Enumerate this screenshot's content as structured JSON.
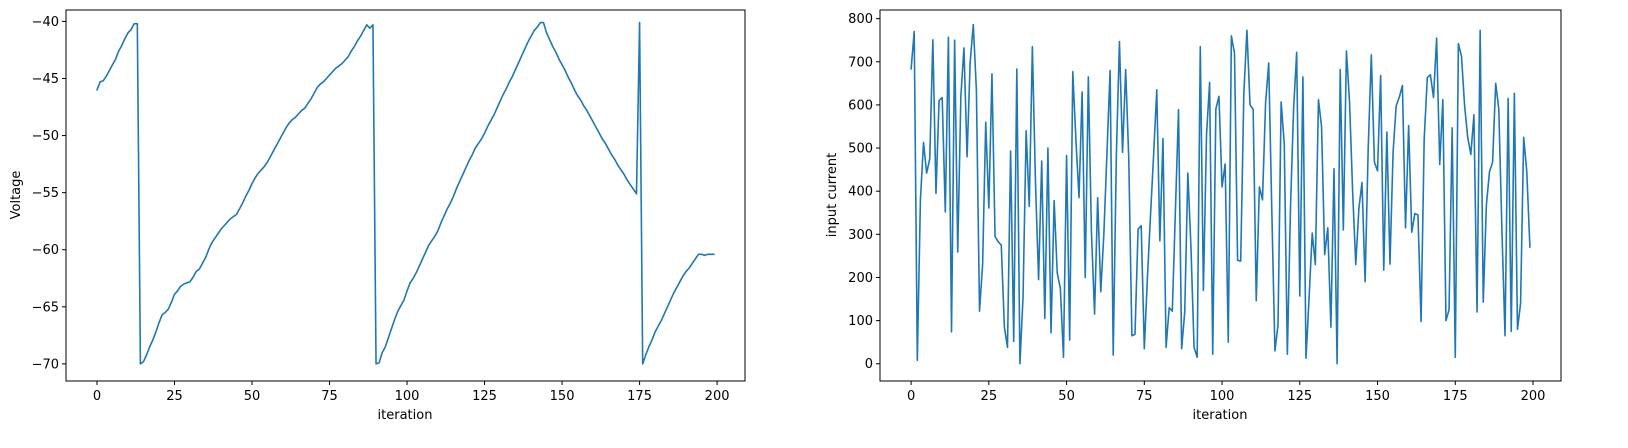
{
  "colors": {
    "series": "#1f77b4",
    "axes": "#000000",
    "background": "#ffffff"
  },
  "chart_data": [
    {
      "type": "line",
      "title": "",
      "xlabel": "iteration",
      "ylabel": "Voltage",
      "xlim": [
        -10,
        209
      ],
      "ylim": [
        -71.5,
        -39.0
      ],
      "xticks": [
        0,
        25,
        50,
        75,
        100,
        125,
        150,
        175,
        200
      ],
      "yticks": [
        -70,
        -65,
        -60,
        -55,
        -50,
        -45,
        -40
      ],
      "grid": false,
      "series": [
        {
          "x": [
            0,
            1,
            2,
            3,
            4,
            5,
            6,
            7,
            8,
            9,
            10,
            11,
            12,
            13,
            14,
            15,
            16,
            17,
            18,
            19,
            20,
            21,
            22,
            23,
            24,
            25,
            26,
            27,
            28,
            29,
            30,
            31,
            32,
            33,
            34,
            35,
            36,
            37,
            38,
            39,
            40,
            41,
            42,
            43,
            44,
            45,
            46,
            47,
            48,
            49,
            50,
            51,
            52,
            53,
            54,
            55,
            56,
            57,
            58,
            59,
            60,
            61,
            62,
            63,
            64,
            65,
            66,
            67,
            68,
            69,
            70,
            71,
            72,
            73,
            74,
            75,
            76,
            77,
            78,
            79,
            80,
            81,
            82,
            83,
            84,
            85,
            86,
            87,
            88,
            89,
            90,
            91,
            92,
            93,
            94,
            95,
            96,
            97,
            98,
            99,
            100,
            101,
            102,
            103,
            104,
            105,
            106,
            107,
            108,
            109,
            110,
            111,
            112,
            113,
            114,
            115,
            116,
            117,
            118,
            119,
            120,
            121,
            122,
            123,
            124,
            125,
            126,
            127,
            128,
            129,
            130,
            131,
            132,
            133,
            134,
            135,
            136,
            137,
            138,
            139,
            140,
            141,
            142,
            143,
            144,
            145,
            146,
            147,
            148,
            149,
            150,
            151,
            152,
            153,
            154,
            155,
            156,
            157,
            158,
            159,
            160,
            161,
            162,
            163,
            164,
            165,
            166,
            167,
            168,
            169,
            170,
            171,
            172,
            173,
            174,
            175,
            176,
            177,
            178,
            179,
            180,
            181,
            182,
            183,
            184,
            185,
            186,
            187,
            188,
            189,
            190,
            191,
            192,
            193,
            194,
            195,
            196,
            197,
            198,
            199
          ],
          "values": [
            -46.0,
            -45.3,
            -45.2,
            -44.8,
            -44.3,
            -43.8,
            -43.3,
            -42.6,
            -42.1,
            -41.5,
            -41.0,
            -40.7,
            -40.2,
            -40.2,
            -70.0,
            -69.8,
            -69.2,
            -68.5,
            -67.9,
            -67.2,
            -66.4,
            -65.7,
            -65.5,
            -65.2,
            -64.6,
            -63.9,
            -63.6,
            -63.2,
            -63.0,
            -62.9,
            -62.8,
            -62.4,
            -61.9,
            -61.7,
            -61.2,
            -60.7,
            -60.0,
            -59.4,
            -59.0,
            -58.6,
            -58.2,
            -57.9,
            -57.6,
            -57.3,
            -57.1,
            -56.9,
            -56.4,
            -55.9,
            -55.3,
            -54.8,
            -54.2,
            -53.7,
            -53.3,
            -53.0,
            -52.7,
            -52.3,
            -51.8,
            -51.3,
            -50.8,
            -50.3,
            -49.8,
            -49.3,
            -48.9,
            -48.6,
            -48.4,
            -48.1,
            -47.8,
            -47.6,
            -47.2,
            -46.8,
            -46.3,
            -45.8,
            -45.5,
            -45.3,
            -45.0,
            -44.7,
            -44.4,
            -44.1,
            -43.9,
            -43.7,
            -43.4,
            -43.1,
            -42.6,
            -42.2,
            -41.7,
            -41.3,
            -40.8,
            -40.3,
            -40.6,
            -40.3,
            -70.0,
            -69.9,
            -69.0,
            -68.5,
            -67.7,
            -66.9,
            -66.1,
            -65.4,
            -64.9,
            -64.4,
            -63.6,
            -62.9,
            -62.5,
            -62.0,
            -61.4,
            -60.8,
            -60.2,
            -59.6,
            -59.2,
            -58.8,
            -58.3,
            -57.6,
            -57.0,
            -56.4,
            -55.9,
            -55.3,
            -54.6,
            -54.0,
            -53.4,
            -52.8,
            -52.2,
            -51.7,
            -51.1,
            -50.7,
            -50.3,
            -49.8,
            -49.2,
            -48.7,
            -48.2,
            -47.6,
            -47.0,
            -46.4,
            -45.9,
            -45.3,
            -44.8,
            -44.2,
            -43.6,
            -43.0,
            -42.4,
            -41.8,
            -41.3,
            -40.8,
            -40.5,
            -40.1,
            -40.1,
            -41.0,
            -41.6,
            -42.2,
            -42.7,
            -43.3,
            -43.8,
            -44.3,
            -44.9,
            -45.4,
            -46.0,
            -46.5,
            -46.9,
            -47.4,
            -47.8,
            -48.3,
            -48.8,
            -49.3,
            -49.8,
            -50.3,
            -50.7,
            -51.2,
            -51.7,
            -52.1,
            -52.6,
            -53.0,
            -53.4,
            -53.9,
            -54.3,
            -54.7,
            -55.1,
            -40.1,
            -70.0,
            -69.2,
            -68.5,
            -67.9,
            -67.2,
            -66.7,
            -66.2,
            -65.6,
            -65.0,
            -64.4,
            -63.8,
            -63.3,
            -62.8,
            -62.3,
            -61.9,
            -61.6,
            -61.2,
            -60.8,
            -60.4,
            -60.4,
            -60.5,
            -60.4,
            -60.4,
            -60.4
          ],
          "note_values_trimmed": ""
        }
      ]
    },
    {
      "type": "line",
      "title": "",
      "xlabel": "iteration",
      "ylabel": "input current",
      "xlim": [
        -10,
        209
      ],
      "ylim": [
        -40,
        820
      ],
      "xticks": [
        0,
        25,
        50,
        75,
        100,
        125,
        150,
        175,
        200
      ],
      "yticks": [
        0,
        100,
        200,
        300,
        400,
        500,
        600,
        700,
        800
      ],
      "grid": false,
      "series": [
        {
          "values": [
            683,
            770,
            8,
            380,
            513,
            442,
            475,
            751,
            395,
            610,
            617,
            352,
            757,
            74,
            750,
            259,
            620,
            732,
            480,
            700,
            786,
            634,
            122,
            230,
            560,
            361,
            672,
            295,
            283,
            275,
            85,
            38,
            493,
            52,
            683,
            0,
            155,
            540,
            365,
            735,
            420,
            195,
            470,
            105,
            500,
            72,
            378,
            210,
            175,
            15,
            483,
            55,
            677,
            520,
            385,
            630,
            200,
            665,
            305,
            115,
            385,
            167,
            303,
            490,
            680,
            20,
            480,
            747,
            490,
            682,
            475,
            65,
            68,
            312,
            320,
            35,
            200,
            345,
            485,
            635,
            285,
            522,
            38,
            130,
            122,
            355,
            589,
            35,
            120,
            442,
            270,
            38,
            15,
            735,
            170,
            530,
            652,
            22,
            590,
            620,
            410,
            463,
            50,
            760,
            720,
            240,
            238,
            625,
            773,
            600,
            590,
            146,
            410,
            380,
            605,
            697,
            355,
            30,
            90,
            607,
            510,
            22,
            360,
            590,
            722,
            157,
            665,
            13,
            155,
            303,
            230,
            612,
            550,
            253,
            315,
            85,
            452,
            0,
            682,
            310,
            725,
            606,
            398,
            230,
            360,
            420,
            190,
            500,
            716,
            467,
            447,
            668,
            217,
            537,
            231,
            490,
            598,
            618,
            645,
            315,
            552,
            305,
            348,
            345,
            98,
            520,
            663,
            670,
            617,
            755,
            462,
            612,
            100,
            125,
            547,
            15,
            742,
            713,
            598,
            525,
            485,
            577,
            120,
            773,
            143,
            368,
            445,
            467,
            650,
            590,
            310,
            65,
            615,
            75,
            627,
            80,
            140,
            525,
            445,
            270
          ]
        }
      ]
    }
  ]
}
